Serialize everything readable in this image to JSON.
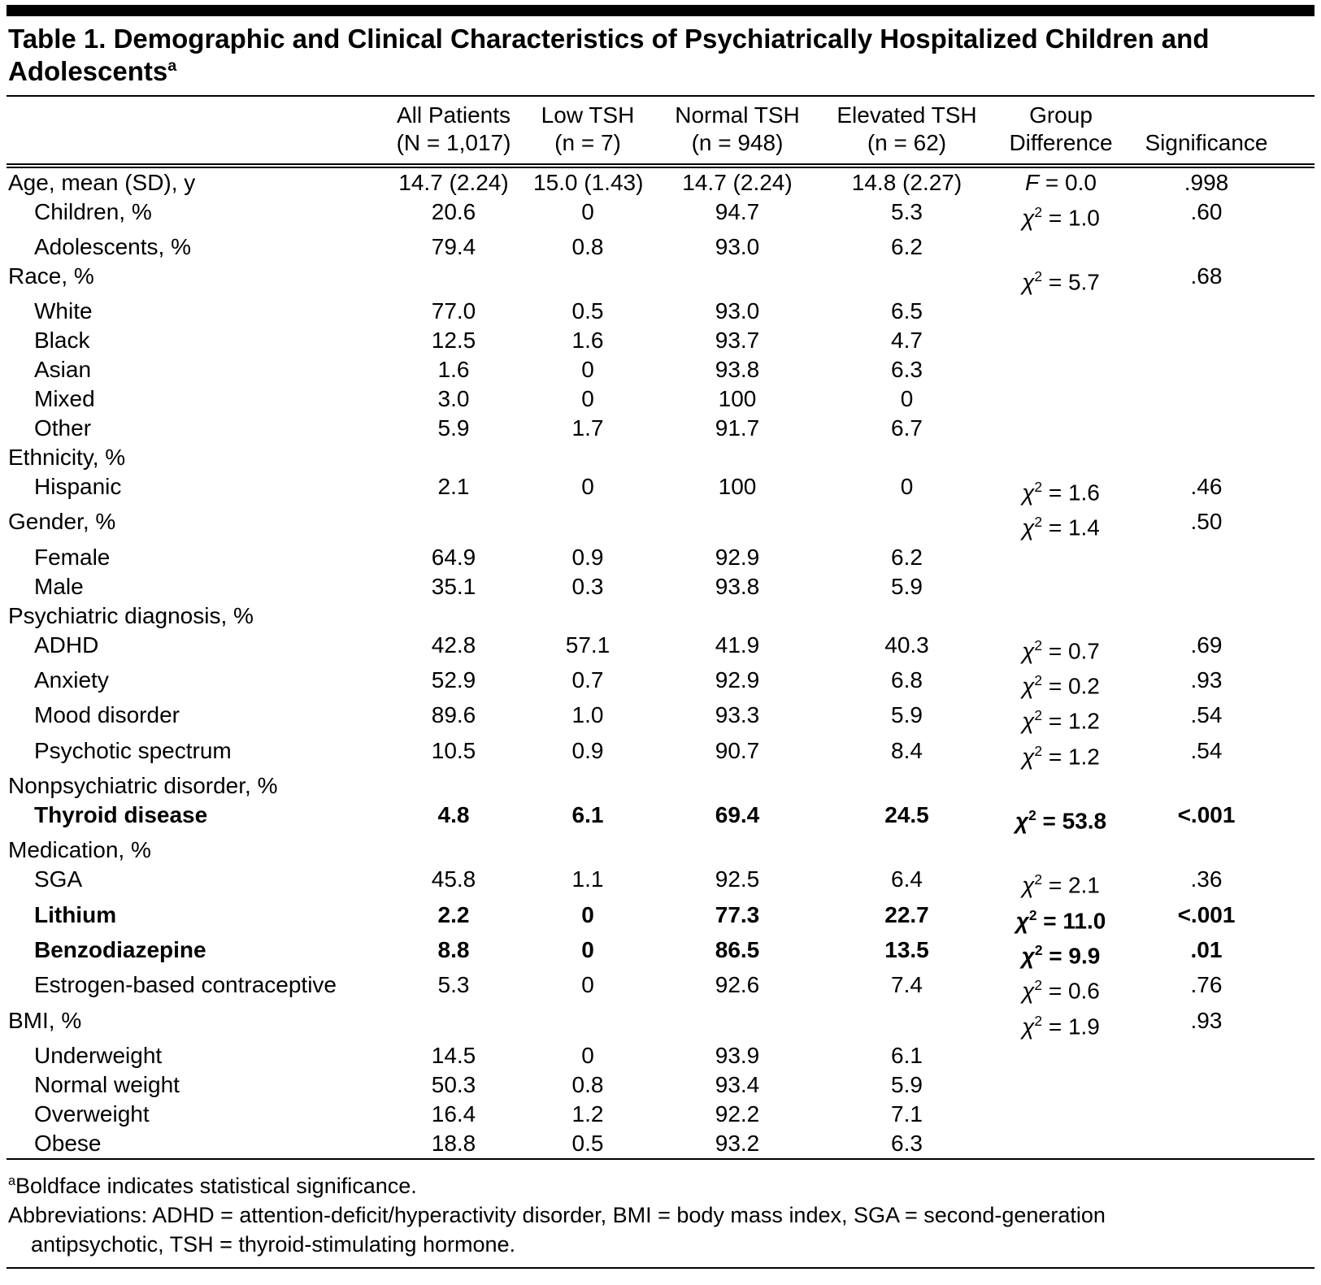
{
  "colors": {
    "text": "#000000",
    "background": "#ffffff",
    "rule": "#000000"
  },
  "table": {
    "title": {
      "text": "Table 1. Demographic and Clinical Characteristics of Psychiatrically Hospitalized Children and Adolescents",
      "sup": "a"
    },
    "columns": [
      {
        "line1": "",
        "line2": ""
      },
      {
        "line1": "All Patients",
        "line2": "(N = 1,017)"
      },
      {
        "line1": "Low TSH",
        "line2": "(n = 7)"
      },
      {
        "line1": "Normal TSH",
        "line2": "(n = 948)"
      },
      {
        "line1": "Elevated TSH",
        "line2": "(n = 62)"
      },
      {
        "line1": "Group",
        "line2": "Difference"
      },
      {
        "line1": "",
        "line2": "Significance"
      }
    ],
    "rows": [
      {
        "label": "Age, mean (SD), y",
        "indent": 0,
        "bold": false,
        "all": "14.7 (2.24)",
        "low": "15.0 (1.43)",
        "normal": "14.7 (2.24)",
        "elevated": "14.8 (2.27)",
        "stat": "F = 0.0",
        "sig": ".998"
      },
      {
        "label": "Children, %",
        "indent": 1,
        "bold": false,
        "all": "20.6",
        "low": "0",
        "normal": "94.7",
        "elevated": "5.3",
        "stat": "χ² = 1.0",
        "sig": ".60"
      },
      {
        "label": "Adolescents, %",
        "indent": 1,
        "bold": false,
        "all": "79.4",
        "low": "0.8",
        "normal": "93.0",
        "elevated": "6.2",
        "stat": "",
        "sig": ""
      },
      {
        "label": "Race, %",
        "indent": 0,
        "bold": false,
        "all": "",
        "low": "",
        "normal": "",
        "elevated": "",
        "stat": "χ² = 5.7",
        "sig": ".68"
      },
      {
        "label": "White",
        "indent": 1,
        "bold": false,
        "all": "77.0",
        "low": "0.5",
        "normal": "93.0",
        "elevated": "6.5",
        "stat": "",
        "sig": ""
      },
      {
        "label": "Black",
        "indent": 1,
        "bold": false,
        "all": "12.5",
        "low": "1.6",
        "normal": "93.7",
        "elevated": "4.7",
        "stat": "",
        "sig": ""
      },
      {
        "label": "Asian",
        "indent": 1,
        "bold": false,
        "all": "1.6",
        "low": "0",
        "normal": "93.8",
        "elevated": "6.3",
        "stat": "",
        "sig": ""
      },
      {
        "label": "Mixed",
        "indent": 1,
        "bold": false,
        "all": "3.0",
        "low": "0",
        "normal": "100",
        "elevated": "0",
        "stat": "",
        "sig": ""
      },
      {
        "label": "Other",
        "indent": 1,
        "bold": false,
        "all": "5.9",
        "low": "1.7",
        "normal": "91.7",
        "elevated": "6.7",
        "stat": "",
        "sig": ""
      },
      {
        "label": "Ethnicity, %",
        "indent": 0,
        "bold": false,
        "all": "",
        "low": "",
        "normal": "",
        "elevated": "",
        "stat": "",
        "sig": ""
      },
      {
        "label": "Hispanic",
        "indent": 1,
        "bold": false,
        "all": "2.1",
        "low": "0",
        "normal": "100",
        "elevated": "0",
        "stat": "χ² = 1.6",
        "sig": ".46"
      },
      {
        "label": "Gender, %",
        "indent": 0,
        "bold": false,
        "all": "",
        "low": "",
        "normal": "",
        "elevated": "",
        "stat": "χ² = 1.4",
        "sig": ".50"
      },
      {
        "label": "Female",
        "indent": 1,
        "bold": false,
        "all": "64.9",
        "low": "0.9",
        "normal": "92.9",
        "elevated": "6.2",
        "stat": "",
        "sig": ""
      },
      {
        "label": "Male",
        "indent": 1,
        "bold": false,
        "all": "35.1",
        "low": "0.3",
        "normal": "93.8",
        "elevated": "5.9",
        "stat": "",
        "sig": ""
      },
      {
        "label": "Psychiatric diagnosis, %",
        "indent": 0,
        "bold": false,
        "all": "",
        "low": "",
        "normal": "",
        "elevated": "",
        "stat": "",
        "sig": ""
      },
      {
        "label": "ADHD",
        "indent": 1,
        "bold": false,
        "all": "42.8",
        "low": "57.1",
        "normal": "41.9",
        "elevated": "40.3",
        "stat": "χ² = 0.7",
        "sig": ".69"
      },
      {
        "label": "Anxiety",
        "indent": 1,
        "bold": false,
        "all": "52.9",
        "low": "0.7",
        "normal": "92.9",
        "elevated": "6.8",
        "stat": "χ² = 0.2",
        "sig": ".93"
      },
      {
        "label": "Mood disorder",
        "indent": 1,
        "bold": false,
        "all": "89.6",
        "low": "1.0",
        "normal": "93.3",
        "elevated": "5.9",
        "stat": "χ² = 1.2",
        "sig": ".54"
      },
      {
        "label": "Psychotic spectrum",
        "indent": 1,
        "bold": false,
        "all": "10.5",
        "low": "0.9",
        "normal": "90.7",
        "elevated": "8.4",
        "stat": "χ² = 1.2",
        "sig": ".54"
      },
      {
        "label": "Nonpsychiatric disorder, %",
        "indent": 0,
        "bold": false,
        "all": "",
        "low": "",
        "normal": "",
        "elevated": "",
        "stat": "",
        "sig": ""
      },
      {
        "label": "Thyroid disease",
        "indent": 1,
        "bold": true,
        "all": "4.8",
        "low": "6.1",
        "normal": "69.4",
        "elevated": "24.5",
        "stat": "χ² = 53.8",
        "sig": "<.001"
      },
      {
        "label": "Medication, %",
        "indent": 0,
        "bold": false,
        "all": "",
        "low": "",
        "normal": "",
        "elevated": "",
        "stat": "",
        "sig": ""
      },
      {
        "label": "SGA",
        "indent": 1,
        "bold": false,
        "all": "45.8",
        "low": "1.1",
        "normal": "92.5",
        "elevated": "6.4",
        "stat": "χ² = 2.1",
        "sig": ".36"
      },
      {
        "label": "Lithium",
        "indent": 1,
        "bold": true,
        "all": "2.2",
        "low": "0",
        "normal": "77.3",
        "elevated": "22.7",
        "stat": "χ² = 11.0",
        "sig": "<.001"
      },
      {
        "label": "Benzodiazepine",
        "indent": 1,
        "bold": true,
        "all": "8.8",
        "low": "0",
        "normal": "86.5",
        "elevated": "13.5",
        "stat": "χ² = 9.9",
        "sig": ".01"
      },
      {
        "label": "Estrogen-based contraceptive",
        "indent": 1,
        "bold": false,
        "all": "5.3",
        "low": "0",
        "normal": "92.6",
        "elevated": "7.4",
        "stat": "χ² = 0.6",
        "sig": ".76"
      },
      {
        "label": "BMI, %",
        "indent": 0,
        "bold": false,
        "all": "",
        "low": "",
        "normal": "",
        "elevated": "",
        "stat": "χ² = 1.9",
        "sig": ".93"
      },
      {
        "label": "Underweight",
        "indent": 1,
        "bold": false,
        "all": "14.5",
        "low": "0",
        "normal": "93.9",
        "elevated": "6.1",
        "stat": "",
        "sig": ""
      },
      {
        "label": "Normal weight",
        "indent": 1,
        "bold": false,
        "all": "50.3",
        "low": "0.8",
        "normal": "93.4",
        "elevated": "5.9",
        "stat": "",
        "sig": ""
      },
      {
        "label": "Overweight",
        "indent": 1,
        "bold": false,
        "all": "16.4",
        "low": "1.2",
        "normal": "92.2",
        "elevated": "7.1",
        "stat": "",
        "sig": ""
      },
      {
        "label": "Obese",
        "indent": 1,
        "bold": false,
        "all": "18.8",
        "low": "0.5",
        "normal": "93.2",
        "elevated": "6.3",
        "stat": "",
        "sig": ""
      }
    ],
    "footnotes": [
      {
        "sup": "a",
        "text": "Boldface indicates statistical significance."
      },
      {
        "sup": "",
        "text": "Abbreviations: ADHD = attention-deficit/hyperactivity disorder, BMI = body mass index, SGA = second-generation antipsychotic, TSH = thyroid-stimulating hormone."
      }
    ]
  }
}
